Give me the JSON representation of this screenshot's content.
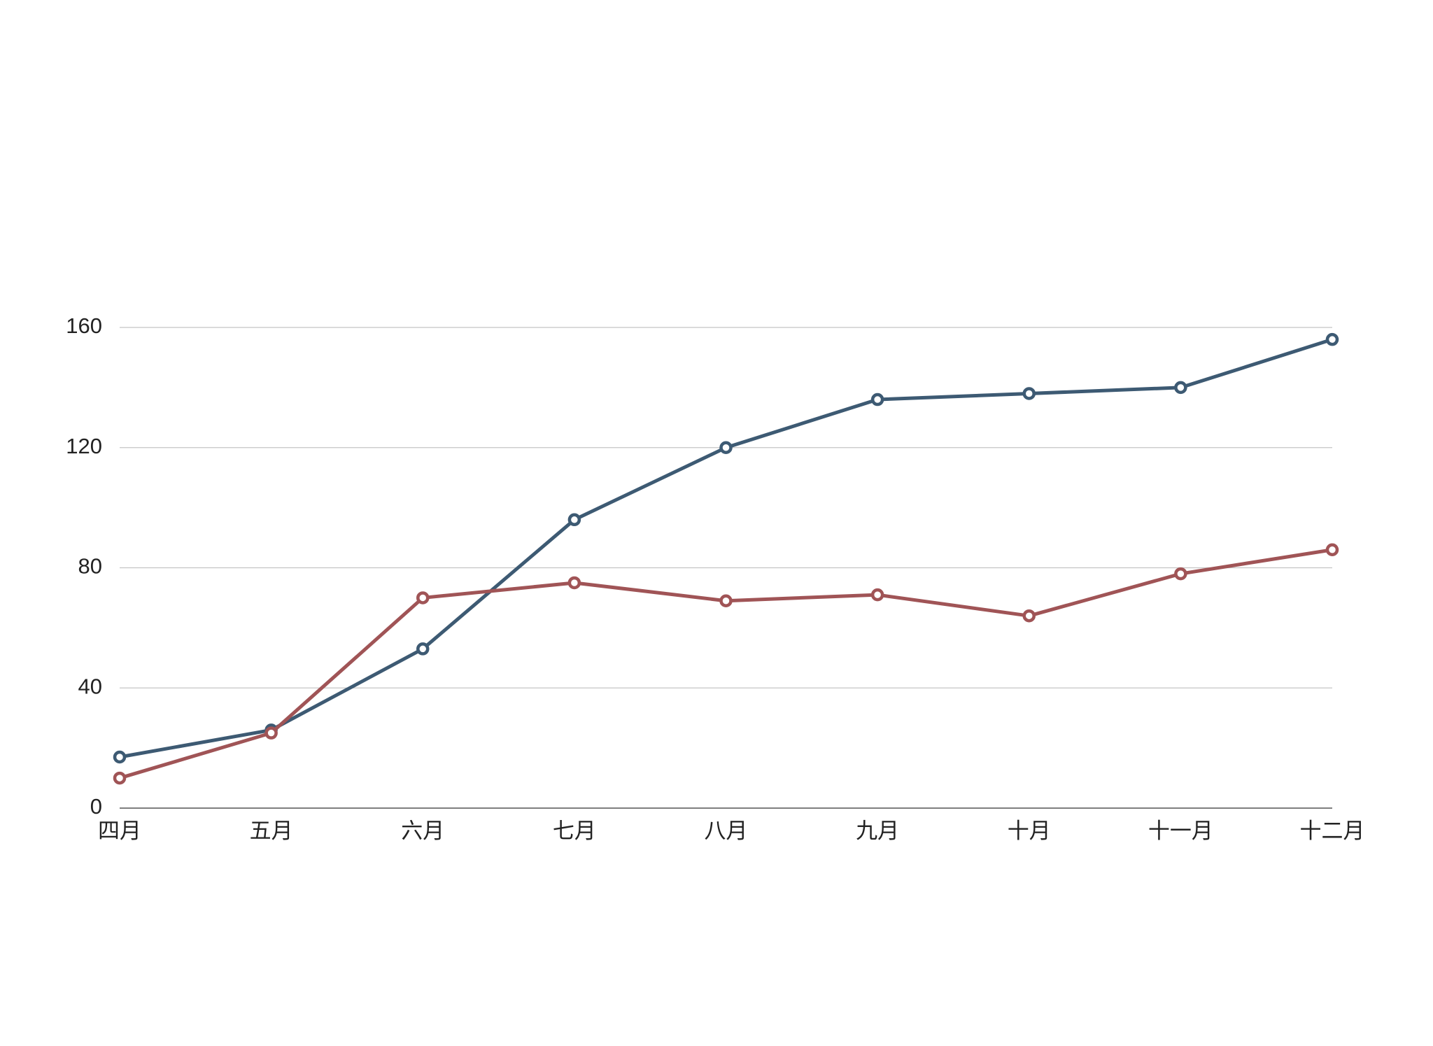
{
  "chart_data": {
    "type": "line",
    "categories": [
      "四月",
      "五月",
      "六月",
      "七月",
      "八月",
      "九月",
      "十月",
      "十一月",
      "十二月"
    ],
    "series": [
      {
        "color": "#3d5a73",
        "values": [
          17,
          26,
          53,
          96,
          120,
          136,
          138,
          140,
          156
        ]
      },
      {
        "color": "#a05456",
        "values": [
          10,
          25,
          70,
          75,
          69,
          71,
          64,
          78,
          86
        ]
      }
    ],
    "ylim": [
      0,
      160
    ],
    "yticks": [
      0,
      40,
      80,
      120,
      160
    ],
    "grid": true
  }
}
